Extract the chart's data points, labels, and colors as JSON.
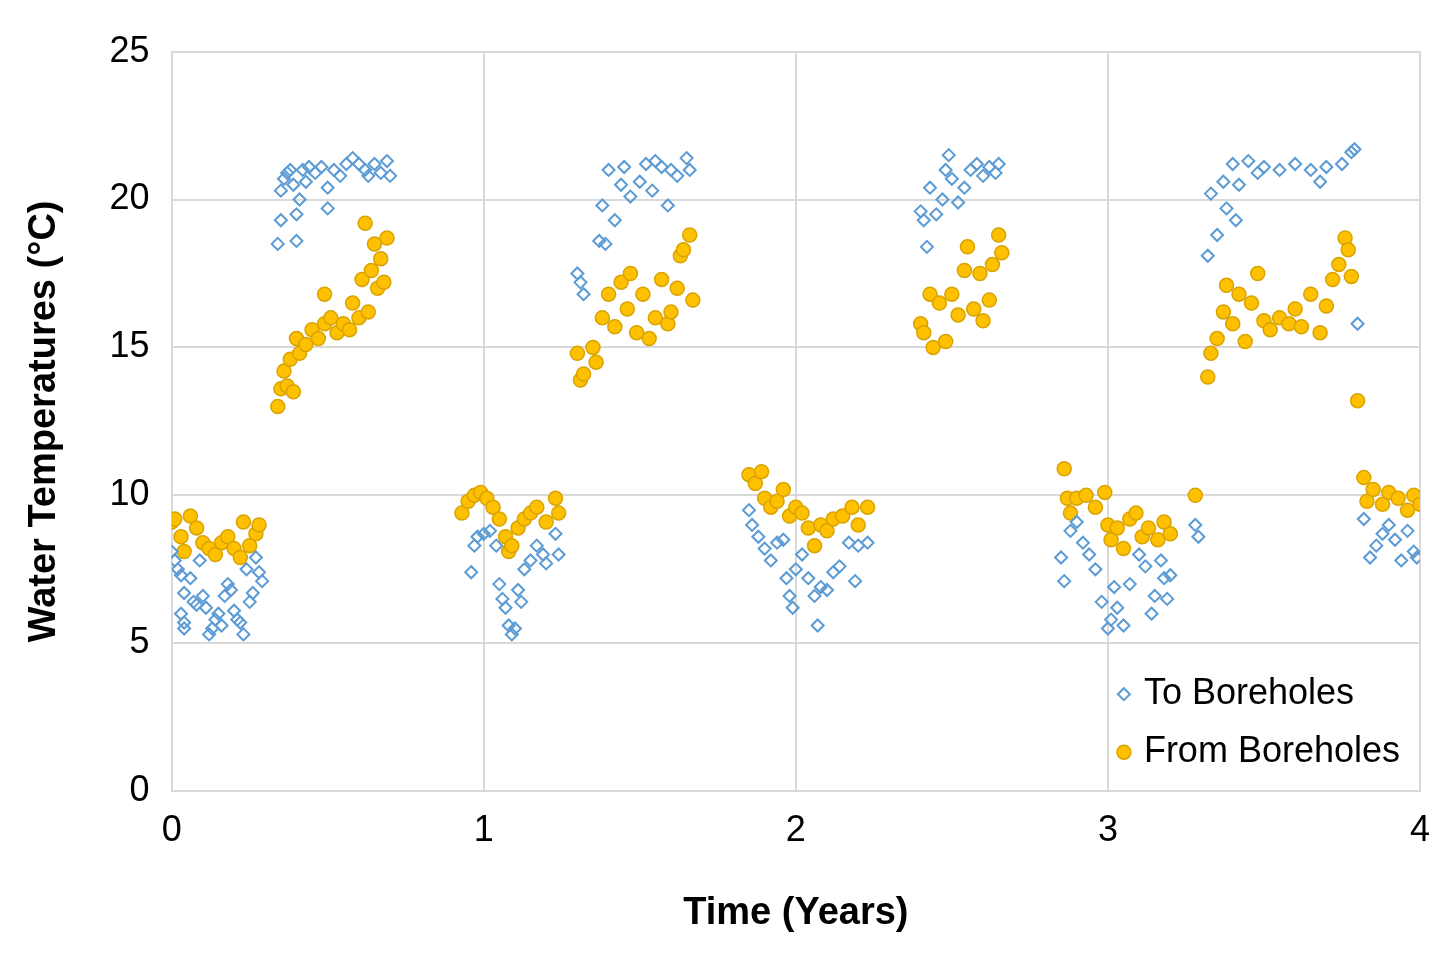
{
  "chart_data": {
    "type": "scatter",
    "xlabel": "Time (Years)",
    "ylabel": "Water Temperatures (°C)",
    "xlim": [
      0,
      4
    ],
    "xticks": [
      0,
      1,
      2,
      3,
      4
    ],
    "ylim": [
      0,
      25
    ],
    "yticks": [
      0,
      5,
      10,
      15,
      20,
      25
    ],
    "grid": true,
    "legend": "bottom right",
    "series": [
      {
        "name": "To Boreholes",
        "color": "#5b9bd5",
        "marker": "diamond",
        "x": [
          0,
          0.01,
          0.02,
          0.03,
          0.04,
          0.03,
          0.04,
          0.04,
          0.06,
          0.07,
          0.08,
          0.09,
          0.1,
          0.11,
          0.12,
          0.13,
          0.14,
          0.15,
          0.16,
          0.17,
          0.18,
          0.19,
          0.2,
          0.21,
          0.22,
          0.23,
          0.24,
          0.25,
          0.26,
          0.27,
          0.28,
          0.29,
          0.34,
          0.35,
          0.35,
          0.36,
          0.37,
          0.38,
          0.39,
          0.4,
          0.4,
          0.41,
          0.42,
          0.43,
          0.44,
          0.46,
          0.48,
          0.5,
          0.5,
          0.52,
          0.54,
          0.56,
          0.58,
          0.6,
          0.62,
          0.63,
          0.65,
          0.67,
          0.69,
          0.7,
          0.96,
          0.97,
          0.98,
          1.0,
          1.02,
          1.04,
          1.05,
          1.06,
          1.07,
          1.08,
          1.09,
          1.1,
          1.11,
          1.12,
          1.13,
          1.15,
          1.17,
          1.19,
          1.2,
          1.23,
          1.24,
          1.3,
          1.31,
          1.32,
          1.37,
          1.39,
          1.38,
          1.4,
          1.42,
          1.44,
          1.45,
          1.47,
          1.5,
          1.52,
          1.54,
          1.55,
          1.57,
          1.59,
          1.6,
          1.62,
          1.65,
          1.66,
          1.85,
          1.86,
          1.88,
          1.9,
          1.92,
          1.94,
          1.96,
          1.97,
          1.98,
          1.99,
          2.0,
          2.02,
          2.04,
          2.06,
          2.07,
          2.08,
          2.1,
          2.12,
          2.14,
          2.17,
          2.19,
          2.2,
          2.23,
          2.4,
          2.41,
          2.42,
          2.43,
          2.45,
          2.47,
          2.48,
          2.49,
          2.5,
          2.52,
          2.54,
          2.56,
          2.58,
          2.6,
          2.62,
          2.64,
          2.65,
          2.85,
          2.86,
          2.88,
          2.9,
          2.92,
          2.94,
          2.96,
          2.98,
          3.0,
          3.01,
          3.02,
          3.03,
          3.05,
          3.07,
          3.1,
          3.12,
          3.14,
          3.15,
          3.17,
          3.18,
          3.19,
          3.2,
          3.28,
          3.29,
          3.32,
          3.33,
          3.35,
          3.37,
          3.38,
          3.4,
          3.41,
          3.42,
          3.45,
          3.48,
          3.5,
          3.55,
          3.6,
          3.65,
          3.68,
          3.7,
          3.75,
          3.78,
          3.79,
          3.8,
          3.82,
          3.84,
          3.86,
          3.88,
          3.9,
          3.92,
          3.94,
          3.96,
          3.98,
          3.99
        ],
        "values": [
          8.1,
          7.8,
          7.5,
          7.3,
          6.7,
          6.0,
          5.5,
          5.7,
          7.2,
          6.4,
          6.3,
          7.8,
          6.6,
          6.2,
          5.3,
          5.5,
          5.8,
          6.0,
          5.6,
          6.6,
          7.0,
          6.8,
          6.1,
          5.8,
          5.7,
          5.3,
          7.5,
          6.4,
          6.7,
          7.9,
          7.4,
          7.1,
          18.5,
          19.3,
          20.3,
          20.7,
          20.9,
          21.0,
          20.5,
          19.5,
          18.6,
          20.0,
          21.0,
          20.6,
          21.1,
          20.9,
          21.1,
          20.4,
          19.7,
          21.0,
          20.8,
          21.2,
          21.4,
          21.2,
          21.0,
          20.8,
          21.2,
          20.9,
          21.3,
          20.8,
          7.4,
          8.3,
          8.6,
          8.7,
          8.8,
          8.3,
          7.0,
          6.5,
          6.2,
          5.6,
          5.3,
          5.5,
          6.8,
          6.4,
          7.5,
          7.8,
          8.3,
          8.0,
          7.7,
          8.7,
          8.0,
          17.5,
          17.2,
          16.8,
          18.6,
          18.5,
          19.8,
          21.0,
          19.3,
          20.5,
          21.1,
          20.1,
          20.6,
          21.2,
          20.3,
          21.3,
          21.1,
          19.8,
          21.0,
          20.8,
          21.4,
          21.0,
          9.5,
          9.0,
          8.6,
          8.2,
          7.8,
          8.4,
          8.5,
          7.2,
          6.6,
          6.2,
          7.5,
          8.0,
          7.2,
          6.6,
          5.6,
          6.9,
          6.8,
          7.4,
          7.6,
          8.4,
          7.1,
          8.3,
          8.4,
          19.6,
          19.3,
          18.4,
          20.4,
          19.5,
          20.0,
          21.0,
          21.5,
          20.7,
          19.9,
          20.4,
          21.0,
          21.2,
          20.8,
          21.1,
          20.9,
          21.2,
          7.9,
          7.1,
          8.8,
          9.1,
          8.4,
          8.0,
          7.5,
          6.4,
          5.5,
          5.8,
          6.9,
          6.2,
          5.6,
          7.0,
          8.0,
          7.6,
          6.0,
          6.6,
          7.8,
          7.2,
          6.5,
          7.3,
          9.0,
          8.6,
          18.1,
          20.2,
          18.8,
          20.6,
          19.7,
          21.2,
          19.3,
          20.5,
          21.3,
          20.9,
          21.1,
          21.0,
          21.2,
          21.0,
          20.6,
          21.1,
          21.2,
          21.6,
          21.7,
          15.8,
          9.2,
          7.9,
          8.3,
          8.7,
          9.0,
          8.5,
          7.8,
          8.8,
          8.1,
          7.9
        ]
      },
      {
        "name": "From Boreholes",
        "color": "#ffc000",
        "marker": "circle",
        "x": [
          0,
          0.01,
          0.03,
          0.04,
          0.06,
          0.08,
          0.1,
          0.12,
          0.14,
          0.16,
          0.18,
          0.2,
          0.22,
          0.23,
          0.25,
          0.27,
          0.28,
          0.34,
          0.35,
          0.36,
          0.37,
          0.38,
          0.39,
          0.4,
          0.41,
          0.43,
          0.45,
          0.47,
          0.49,
          0.49,
          0.51,
          0.53,
          0.55,
          0.57,
          0.58,
          0.6,
          0.61,
          0.62,
          0.63,
          0.64,
          0.65,
          0.66,
          0.67,
          0.68,
          0.69,
          0.93,
          0.95,
          0.97,
          0.99,
          1.01,
          1.03,
          1.05,
          1.07,
          1.08,
          1.09,
          1.11,
          1.13,
          1.15,
          1.17,
          1.2,
          1.23,
          1.24,
          1.3,
          1.31,
          1.32,
          1.35,
          1.36,
          1.38,
          1.4,
          1.42,
          1.44,
          1.46,
          1.47,
          1.49,
          1.51,
          1.53,
          1.55,
          1.57,
          1.59,
          1.6,
          1.62,
          1.63,
          1.64,
          1.66,
          1.67,
          1.85,
          1.87,
          1.89,
          1.9,
          1.92,
          1.94,
          1.96,
          1.98,
          2.0,
          2.02,
          2.04,
          2.06,
          2.08,
          2.1,
          2.12,
          2.15,
          2.18,
          2.2,
          2.23,
          2.4,
          2.41,
          2.43,
          2.44,
          2.46,
          2.48,
          2.5,
          2.52,
          2.54,
          2.55,
          2.57,
          2.59,
          2.6,
          2.62,
          2.63,
          2.65,
          2.66,
          2.86,
          2.87,
          2.88,
          2.9,
          2.93,
          2.96,
          2.99,
          3.0,
          3.01,
          3.03,
          3.05,
          3.07,
          3.09,
          3.11,
          3.13,
          3.16,
          3.18,
          3.2,
          3.28,
          3.32,
          3.33,
          3.35,
          3.37,
          3.38,
          3.4,
          3.42,
          3.44,
          3.46,
          3.48,
          3.5,
          3.52,
          3.55,
          3.58,
          3.6,
          3.62,
          3.65,
          3.68,
          3.7,
          3.72,
          3.74,
          3.76,
          3.77,
          3.78,
          3.8,
          3.82,
          3.83,
          3.85,
          3.88,
          3.9,
          3.93,
          3.96,
          3.98,
          4.0
        ],
        "values": [
          9.1,
          9.2,
          8.6,
          8.1,
          9.3,
          8.9,
          8.4,
          8.2,
          8.0,
          8.4,
          8.6,
          8.2,
          7.9,
          9.1,
          8.3,
          8.7,
          9.0,
          13.0,
          13.6,
          14.2,
          13.7,
          14.6,
          13.5,
          15.3,
          14.8,
          15.1,
          15.6,
          15.3,
          15.8,
          16.8,
          16.0,
          15.5,
          15.8,
          15.6,
          16.5,
          16.0,
          17.3,
          19.2,
          16.2,
          17.6,
          18.5,
          17.0,
          18.0,
          17.2,
          18.7,
          9.4,
          9.8,
          10.0,
          10.1,
          9.9,
          9.6,
          9.2,
          8.6,
          8.1,
          8.3,
          8.9,
          9.2,
          9.4,
          9.6,
          9.1,
          9.9,
          9.4,
          14.8,
          13.9,
          14.1,
          15.0,
          14.5,
          16.0,
          16.8,
          15.7,
          17.2,
          16.3,
          17.5,
          15.5,
          16.8,
          15.3,
          16.0,
          17.3,
          15.8,
          16.2,
          17.0,
          18.1,
          18.3,
          18.8,
          16.6,
          10.7,
          10.4,
          10.8,
          9.9,
          9.6,
          9.8,
          10.2,
          9.3,
          9.6,
          9.4,
          8.9,
          8.3,
          9.0,
          8.8,
          9.2,
          9.3,
          9.6,
          9.0,
          9.6,
          15.8,
          15.5,
          16.8,
          15.0,
          16.5,
          15.2,
          16.8,
          16.1,
          17.6,
          18.4,
          16.3,
          17.5,
          15.9,
          16.6,
          17.8,
          18.8,
          18.2,
          10.9,
          9.9,
          9.4,
          9.9,
          10.0,
          9.6,
          10.1,
          9.0,
          8.5,
          8.9,
          8.2,
          9.2,
          9.4,
          8.6,
          8.9,
          8.5,
          9.1,
          8.7,
          10.0,
          14.0,
          14.8,
          15.3,
          16.2,
          17.1,
          15.8,
          16.8,
          15.2,
          16.5,
          17.5,
          15.9,
          15.6,
          16.0,
          15.8,
          16.3,
          15.7,
          16.8,
          15.5,
          16.4,
          17.3,
          17.8,
          18.7,
          18.3,
          17.4,
          13.2,
          10.6,
          9.8,
          10.2,
          9.7,
          10.1,
          9.9,
          9.5,
          10.0,
          9.7
        ]
      }
    ]
  }
}
